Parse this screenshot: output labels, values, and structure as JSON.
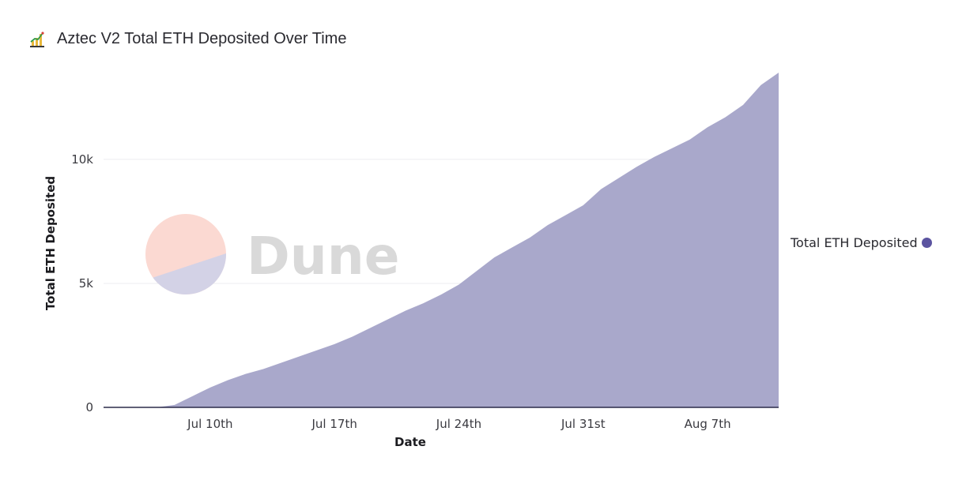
{
  "title": "Aztec V2 Total ETH Deposited Over Time",
  "title_icon": "area-chart-icon",
  "watermark": {
    "text": "Dune",
    "icon": "dune-logo-icon"
  },
  "legend": {
    "label": "Total ETH Deposited",
    "color": "#5b54a0"
  },
  "colors": {
    "area_fill": "#a9a8cb",
    "axis_line": "#2b2b4a",
    "grid": "#ececf1",
    "accent": "#5b54a0"
  },
  "chart_data": {
    "type": "area",
    "title": "Aztec V2 Total ETH Deposited Over Time",
    "xlabel": "Date",
    "ylabel": "Total ETH Deposited",
    "x_ticks": [
      "Jul 10th",
      "Jul 17th",
      "Jul 24th",
      "Jul 31st",
      "Aug 7th"
    ],
    "y_ticks": [
      "0",
      "5k",
      "10k"
    ],
    "ylim": [
      0,
      13500
    ],
    "xlim": [
      "2022-07-04",
      "2022-08-11"
    ],
    "grid": true,
    "legend_position": "right",
    "series": [
      {
        "name": "Total ETH Deposited",
        "x": [
          "2022-07-04",
          "2022-07-05",
          "2022-07-06",
          "2022-07-07",
          "2022-07-08",
          "2022-07-09",
          "2022-07-10",
          "2022-07-11",
          "2022-07-12",
          "2022-07-13",
          "2022-07-14",
          "2022-07-15",
          "2022-07-16",
          "2022-07-17",
          "2022-07-18",
          "2022-07-19",
          "2022-07-20",
          "2022-07-21",
          "2022-07-22",
          "2022-07-23",
          "2022-07-24",
          "2022-07-25",
          "2022-07-26",
          "2022-07-27",
          "2022-07-28",
          "2022-07-29",
          "2022-07-30",
          "2022-07-31",
          "2022-08-01",
          "2022-08-02",
          "2022-08-03",
          "2022-08-04",
          "2022-08-05",
          "2022-08-06",
          "2022-08-07",
          "2022-08-08",
          "2022-08-09",
          "2022-08-10",
          "2022-08-11"
        ],
        "values": [
          0,
          0,
          0,
          0,
          100,
          450,
          800,
          1100,
          1350,
          1550,
          1800,
          2050,
          2300,
          2550,
          2850,
          3200,
          3550,
          3900,
          4200,
          4550,
          4950,
          5500,
          6050,
          6450,
          6850,
          7350,
          7750,
          8150,
          8800,
          9250,
          9700,
          10100,
          10450,
          10800,
          11300,
          11700,
          12200,
          13000,
          13500
        ]
      }
    ]
  }
}
